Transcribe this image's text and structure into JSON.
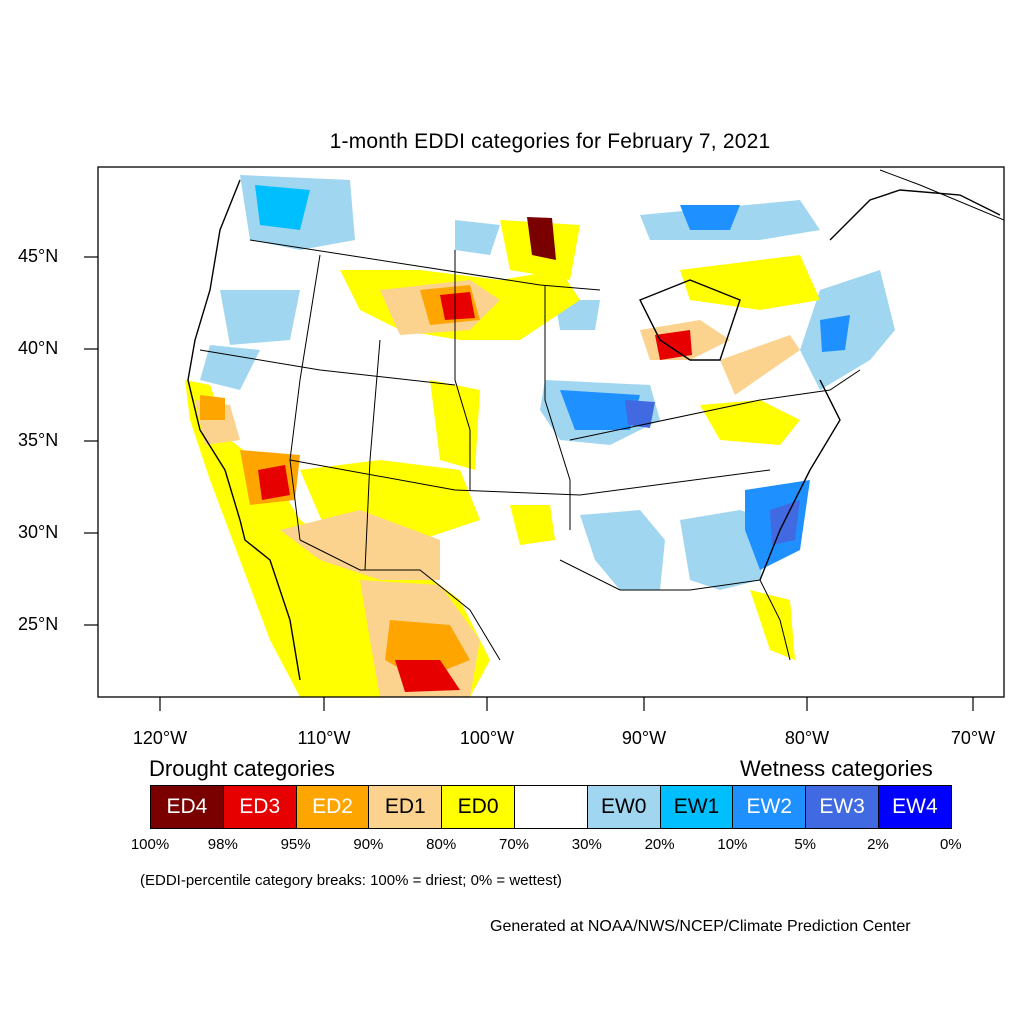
{
  "title": "1-month EDDI categories for February 7, 2021",
  "map": {
    "latitude_labels": [
      "45°N",
      "40°N",
      "35°N",
      "30°N",
      "25°N"
    ],
    "longitude_labels": [
      "120°W",
      "110°W",
      "100°W",
      "90°W",
      "80°W",
      "70°W"
    ]
  },
  "legend": {
    "drought_heading": "Drought categories",
    "wetness_heading": "Wetness categories",
    "categories": [
      {
        "label": "ED4",
        "color": "#7a0000",
        "text_color": "#ffffff"
      },
      {
        "label": "ED3",
        "color": "#e60000",
        "text_color": "#ffffff"
      },
      {
        "label": "ED2",
        "color": "#ffa500",
        "text_color": "#ffffff"
      },
      {
        "label": "ED1",
        "color": "#fbd28e",
        "text_color": "#000000"
      },
      {
        "label": "ED0",
        "color": "#ffff00",
        "text_color": "#000000"
      },
      {
        "label": "",
        "color": "#ffffff",
        "text_color": "#000000"
      },
      {
        "label": "EW0",
        "color": "#a1d6f0",
        "text_color": "#000000"
      },
      {
        "label": "EW1",
        "color": "#00bfff",
        "text_color": "#000000"
      },
      {
        "label": "EW2",
        "color": "#1e90ff",
        "text_color": "#ffffff"
      },
      {
        "label": "EW3",
        "color": "#4169e1",
        "text_color": "#ffffff"
      },
      {
        "label": "EW4",
        "color": "#0000ff",
        "text_color": "#ffffff"
      }
    ],
    "breaks": [
      "100%",
      "98%",
      "95%",
      "90%",
      "80%",
      "70%",
      "30%",
      "20%",
      "10%",
      "5%",
      "2%",
      "0%"
    ]
  },
  "footnote": "(EDDI-percentile category breaks: 100% = driest; 0% = wettest)",
  "credit": "Generated at NOAA/NWS/NCEP/Climate Prediction Center"
}
